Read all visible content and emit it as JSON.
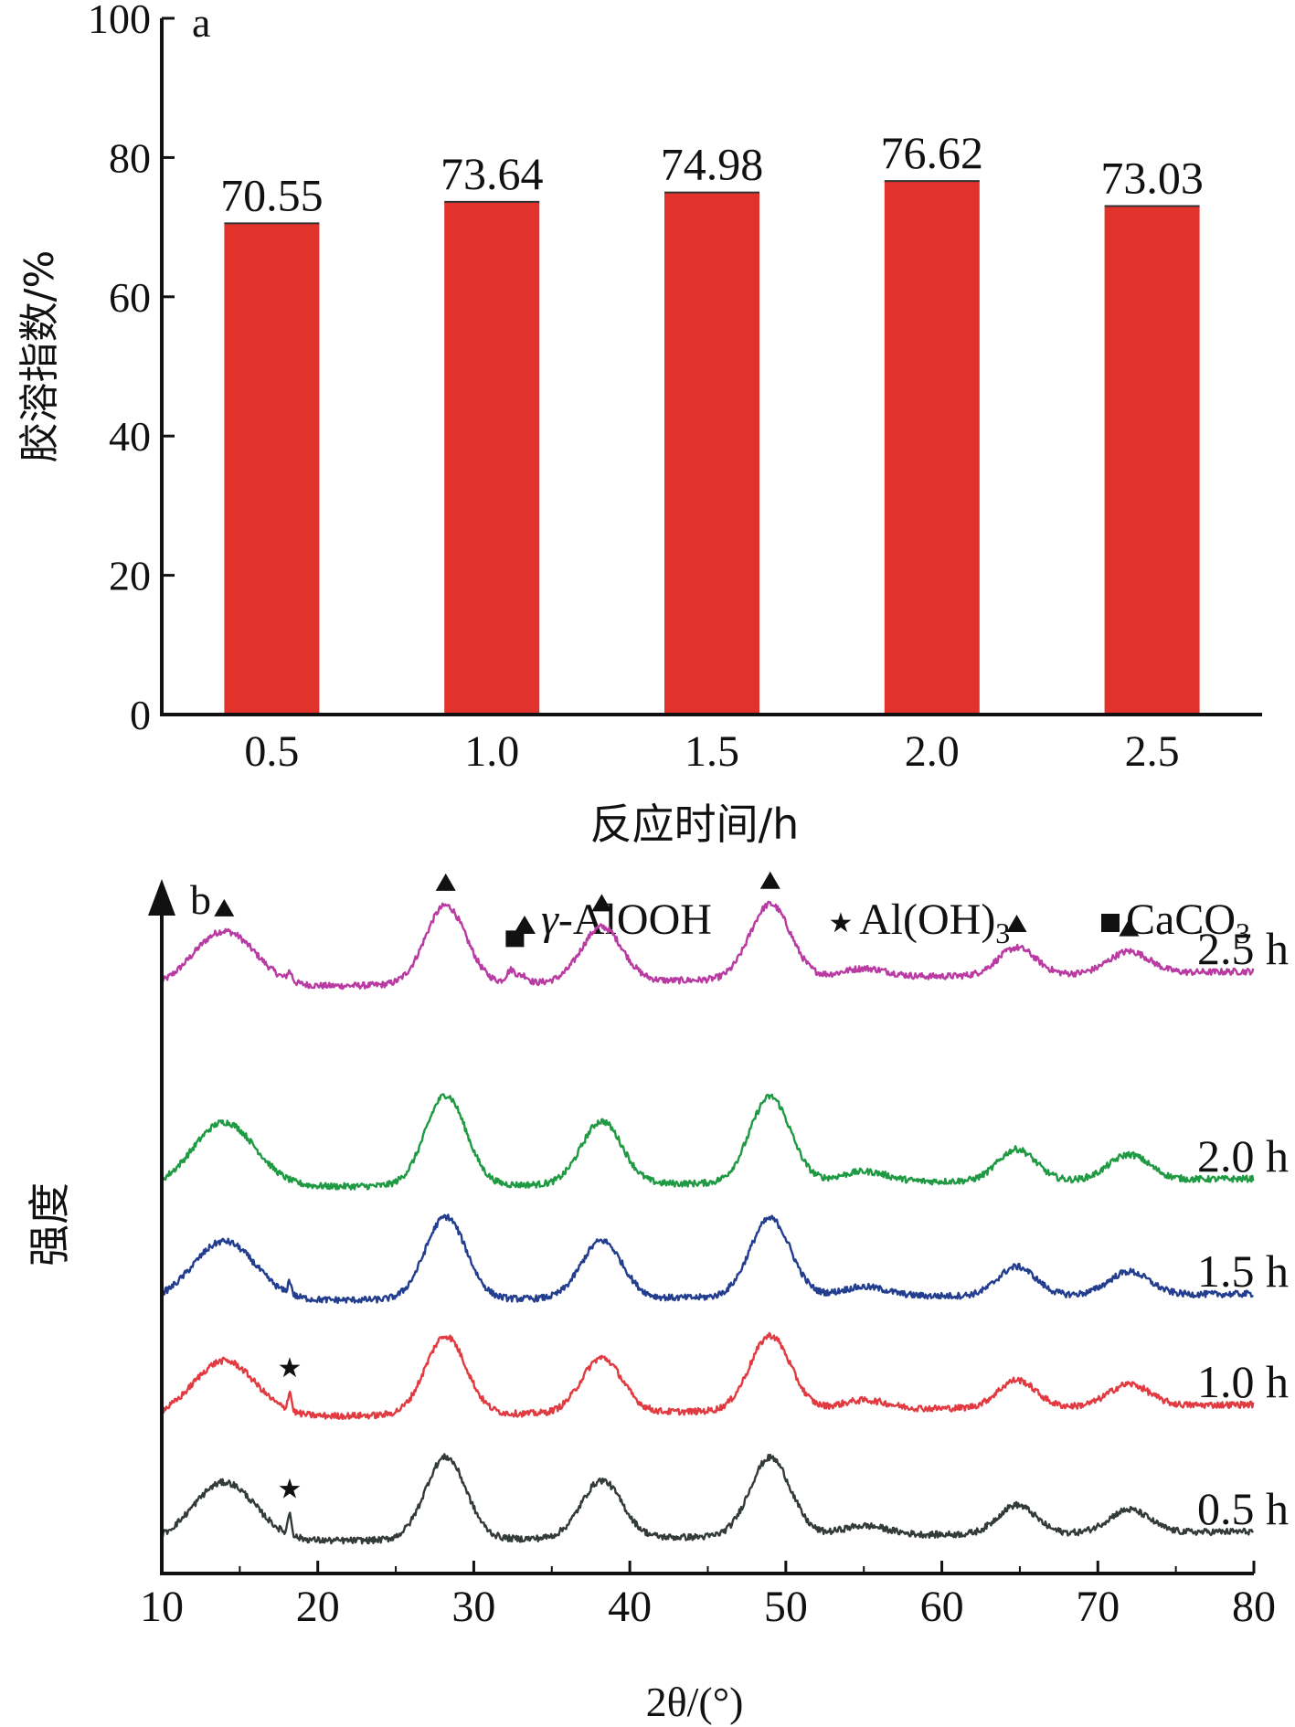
{
  "chart_data": [
    {
      "panel_label": "a",
      "type": "bar",
      "categories": [
        "0.5",
        "1.0",
        "1.5",
        "2.0",
        "2.5"
      ],
      "values": [
        70.55,
        73.64,
        74.98,
        76.62,
        73.03
      ],
      "data_labels": [
        "70.55",
        "73.64",
        "74.98",
        "76.62",
        "73.03"
      ],
      "xlabel": "反应时间/h",
      "ylabel": "胶溶指数/%",
      "ylim": [
        0,
        100
      ],
      "yticks": [
        "0",
        "20",
        "40",
        "60",
        "80",
        "100"
      ],
      "colors": {
        "bar": "#e2322c",
        "axis": "#111111"
      }
    },
    {
      "panel_label": "b",
      "type": "line",
      "xlabel": "2θ/(°)",
      "ylabel": "强度",
      "xlim": [
        10,
        80
      ],
      "xticks": [
        "10",
        "20",
        "30",
        "40",
        "50",
        "60",
        "70",
        "80"
      ],
      "legend": {
        "placement": "top-right",
        "entries": [
          {
            "marker": "triangle",
            "name": "γ-AlOOH",
            "italic_prefix": "γ",
            "rest": "-AlOOH"
          },
          {
            "marker": "star",
            "name": "Al(OH)3",
            "base": "Al(OH)",
            "sub": "3"
          },
          {
            "marker": "square",
            "name": "CaCO3",
            "base": "CaCO",
            "sub": "3"
          }
        ]
      },
      "series": [
        {
          "name": "2.5 h",
          "color": "#b83aa2"
        },
        {
          "name": "2.0 h",
          "color": "#1f9a43"
        },
        {
          "name": "1.5 h",
          "color": "#233d8f"
        },
        {
          "name": "1.0 h",
          "color": "#e13a40"
        },
        {
          "name": "0.5 h",
          "color": "#333b38"
        }
      ],
      "peaks_gamma_alooh": [
        14,
        28.2,
        38.2,
        49,
        64.8,
        72
      ],
      "peak_al_oh3": 18.2,
      "peak_caco3": 32.4,
      "marker_series": {
        "triangle": "2.5 h",
        "square": "2.5 h",
        "star": [
          "1.0 h",
          "0.5 h"
        ]
      }
    }
  ]
}
